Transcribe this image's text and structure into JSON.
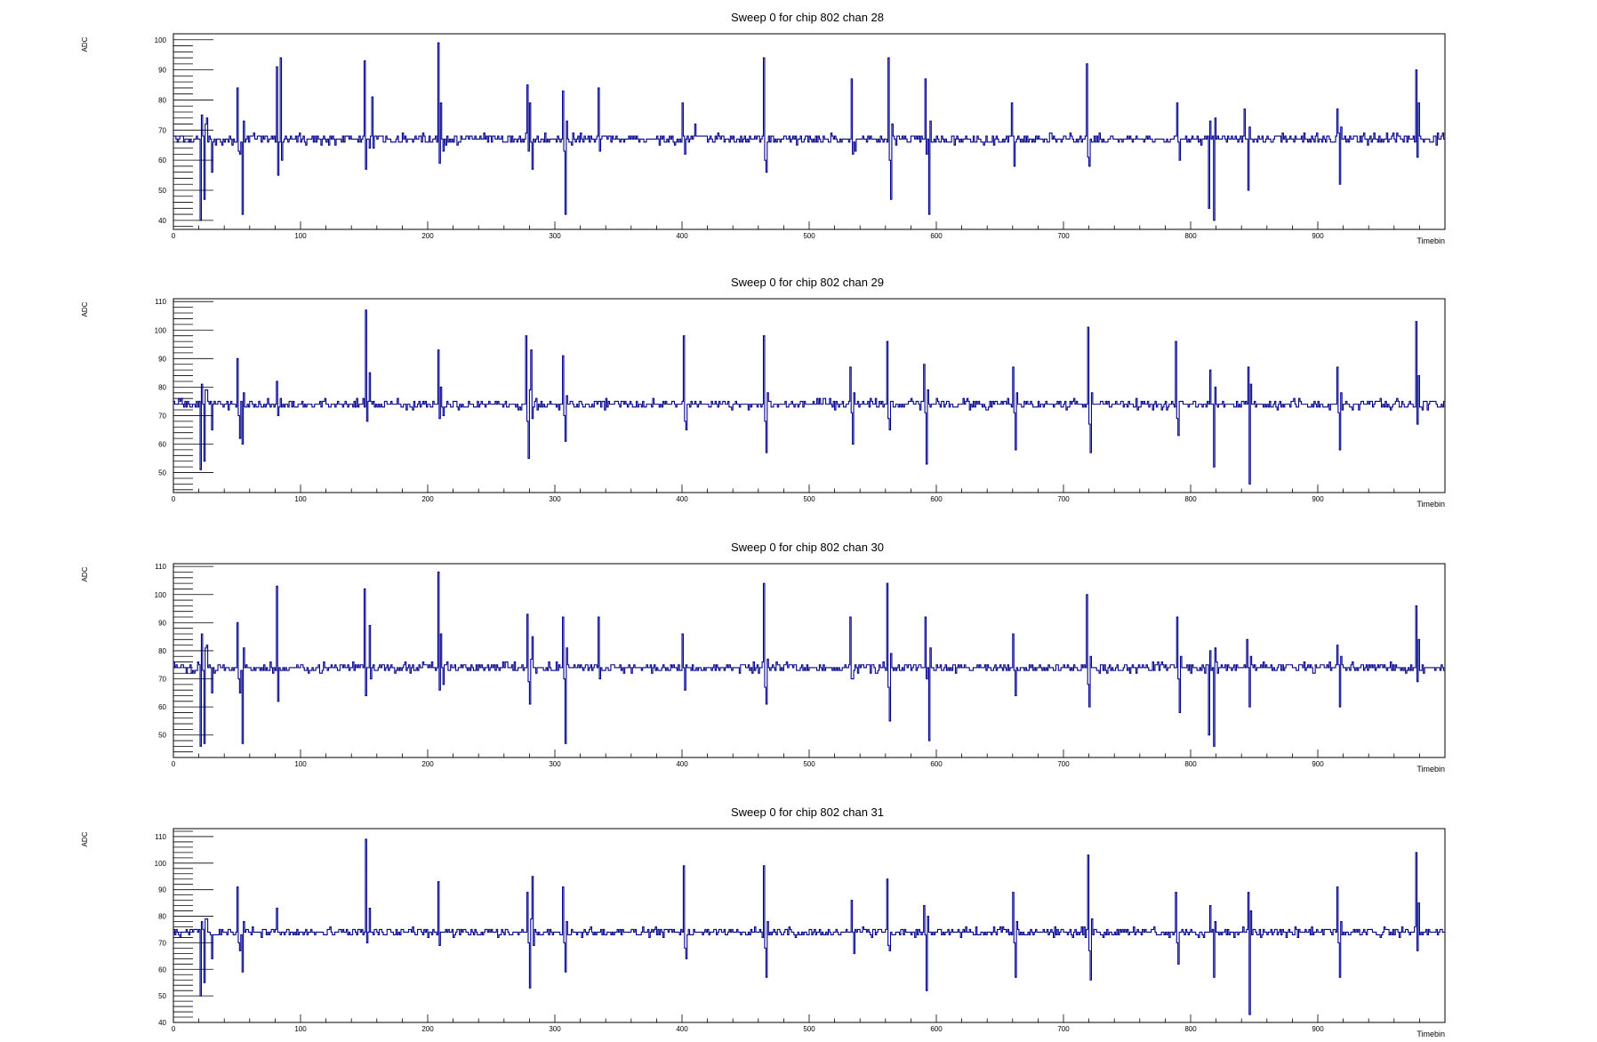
{
  "colors": {
    "series": "#00008b",
    "axis": "#000000",
    "background": "#ffffff"
  },
  "chart_data": [
    {
      "type": "line",
      "title": "Sweep 0 for chip 802 chan 28",
      "xlabel": "Timebin",
      "ylabel": "ADC",
      "xlim": [
        0,
        1000
      ],
      "ylim": [
        37,
        102
      ],
      "x_ticks": [
        "0",
        "100",
        "200",
        "300",
        "400",
        "500",
        "600",
        "700",
        "800",
        "900"
      ],
      "y_ticks": [
        "40",
        "50",
        "60",
        "70",
        "80",
        "90",
        "100"
      ],
      "baseline": 67,
      "series": [
        {
          "spikes": [
            [
              21,
              40
            ],
            [
              22,
              75
            ],
            [
              24,
              47
            ],
            [
              26,
              74
            ],
            [
              30,
              56
            ],
            [
              50,
              84
            ],
            [
              52,
              62
            ],
            [
              54,
              42
            ],
            [
              81,
              91
            ],
            [
              82,
              55
            ],
            [
              84,
              94
            ],
            [
              150,
              93
            ],
            [
              151,
              57
            ],
            [
              154,
              64
            ],
            [
              156,
              81
            ],
            [
              208,
              99
            ],
            [
              210,
              79
            ],
            [
              212,
              63
            ],
            [
              278,
              85
            ],
            [
              280,
              79
            ],
            [
              282,
              57
            ],
            [
              306,
              83
            ],
            [
              308,
              42
            ],
            [
              334,
              84
            ],
            [
              400,
              79
            ],
            [
              402,
              62
            ],
            [
              410,
              72
            ],
            [
              464,
              94
            ],
            [
              466,
              56
            ],
            [
              533,
              87
            ],
            [
              536,
              63
            ],
            [
              562,
              94
            ],
            [
              564,
              47
            ],
            [
              591,
              87
            ],
            [
              594,
              42
            ],
            [
              659,
              79
            ],
            [
              661,
              58
            ],
            [
              718,
              92
            ],
            [
              720,
              58
            ],
            [
              789,
              79
            ],
            [
              791,
              60
            ],
            [
              814,
              44
            ],
            [
              818,
              40
            ],
            [
              842,
              77
            ],
            [
              845,
              50
            ],
            [
              915,
              77
            ],
            [
              917,
              52
            ],
            [
              977,
              90
            ],
            [
              979,
              79
            ]
          ]
        }
      ]
    },
    {
      "type": "line",
      "title": "Sweep 0 for chip 802 chan 29",
      "xlabel": "Timebin",
      "ylabel": "ADC",
      "xlim": [
        0,
        1000
      ],
      "ylim": [
        43,
        111
      ],
      "x_ticks": [
        "0",
        "100",
        "200",
        "300",
        "400",
        "500",
        "600",
        "700",
        "800",
        "900"
      ],
      "y_ticks": [
        "50",
        "60",
        "70",
        "80",
        "90",
        "100",
        "110"
      ],
      "baseline": 74,
      "series": [
        {
          "spikes": [
            [
              21,
              51
            ],
            [
              22,
              81
            ],
            [
              24,
              54
            ],
            [
              26,
              79
            ],
            [
              30,
              65
            ],
            [
              50,
              90
            ],
            [
              52,
              62
            ],
            [
              54,
              60
            ],
            [
              81,
              82
            ],
            [
              82,
              70
            ],
            [
              151,
              107
            ],
            [
              152,
              68
            ],
            [
              154,
              85
            ],
            [
              208,
              93
            ],
            [
              210,
              80
            ],
            [
              212,
              70
            ],
            [
              277,
              98
            ],
            [
              279,
              55
            ],
            [
              281,
              93
            ],
            [
              306,
              91
            ],
            [
              308,
              61
            ],
            [
              401,
              98
            ],
            [
              403,
              65
            ],
            [
              464,
              98
            ],
            [
              466,
              57
            ],
            [
              532,
              87
            ],
            [
              534,
              60
            ],
            [
              561,
              96
            ],
            [
              563,
              65
            ],
            [
              590,
              88
            ],
            [
              592,
              53
            ],
            [
              660,
              87
            ],
            [
              662,
              58
            ],
            [
              719,
              101
            ],
            [
              721,
              57
            ],
            [
              788,
              96
            ],
            [
              790,
              63
            ],
            [
              815,
              86
            ],
            [
              818,
              52
            ],
            [
              845,
              87
            ],
            [
              846,
              46
            ],
            [
              915,
              87
            ],
            [
              917,
              58
            ],
            [
              977,
              103
            ],
            [
              979,
              84
            ]
          ]
        }
      ]
    },
    {
      "type": "line",
      "title": "Sweep 0 for chip 802 chan 30",
      "xlabel": "Timebin",
      "ylabel": "ADC",
      "xlim": [
        0,
        1000
      ],
      "ylim": [
        42,
        111
      ],
      "x_ticks": [
        "0",
        "100",
        "200",
        "300",
        "400",
        "500",
        "600",
        "700",
        "800",
        "900"
      ],
      "y_ticks": [
        "50",
        "60",
        "70",
        "80",
        "90",
        "100",
        "110"
      ],
      "baseline": 74,
      "series": [
        {
          "spikes": [
            [
              21,
              46
            ],
            [
              22,
              86
            ],
            [
              24,
              47
            ],
            [
              26,
              82
            ],
            [
              30,
              65
            ],
            [
              50,
              90
            ],
            [
              52,
              65
            ],
            [
              54,
              47
            ],
            [
              81,
              103
            ],
            [
              82,
              62
            ],
            [
              150,
              102
            ],
            [
              151,
              64
            ],
            [
              154,
              89
            ],
            [
              208,
              108
            ],
            [
              210,
              86
            ],
            [
              212,
              68
            ],
            [
              278,
              93
            ],
            [
              280,
              61
            ],
            [
              282,
              85
            ],
            [
              306,
              92
            ],
            [
              308,
              47
            ],
            [
              334,
              92
            ],
            [
              400,
              86
            ],
            [
              402,
              66
            ],
            [
              464,
              104
            ],
            [
              466,
              61
            ],
            [
              532,
              92
            ],
            [
              534,
              70
            ],
            [
              561,
              104
            ],
            [
              563,
              55
            ],
            [
              591,
              92
            ],
            [
              594,
              48
            ],
            [
              660,
              86
            ],
            [
              662,
              64
            ],
            [
              718,
              100
            ],
            [
              720,
              60
            ],
            [
              789,
              92
            ],
            [
              791,
              58
            ],
            [
              814,
              50
            ],
            [
              818,
              46
            ],
            [
              844,
              84
            ],
            [
              846,
              60
            ],
            [
              915,
              82
            ],
            [
              917,
              60
            ],
            [
              977,
              96
            ],
            [
              979,
              84
            ]
          ]
        }
      ]
    },
    {
      "type": "line",
      "title": "Sweep 0 for chip 802 chan 31",
      "xlabel": "Timebin",
      "ylabel": "ADC",
      "xlim": [
        0,
        1000
      ],
      "ylim": [
        40,
        113
      ],
      "x_ticks": [
        "0",
        "100",
        "200",
        "300",
        "400",
        "500",
        "600",
        "700",
        "800",
        "900"
      ],
      "y_ticks": [
        "40",
        "50",
        "60",
        "70",
        "80",
        "90",
        "100",
        "110"
      ],
      "baseline": 74,
      "series": [
        {
          "spikes": [
            [
              21,
              50
            ],
            [
              22,
              78
            ],
            [
              24,
              55
            ],
            [
              26,
              79
            ],
            [
              30,
              64
            ],
            [
              50,
              91
            ],
            [
              52,
              67
            ],
            [
              54,
              59
            ],
            [
              81,
              83
            ],
            [
              151,
              109
            ],
            [
              152,
              70
            ],
            [
              154,
              83
            ],
            [
              208,
              93
            ],
            [
              210,
              74
            ],
            [
              278,
              89
            ],
            [
              280,
              53
            ],
            [
              282,
              95
            ],
            [
              306,
              91
            ],
            [
              308,
              59
            ],
            [
              401,
              99
            ],
            [
              403,
              64
            ],
            [
              464,
              99
            ],
            [
              466,
              57
            ],
            [
              533,
              86
            ],
            [
              535,
              66
            ],
            [
              561,
              94
            ],
            [
              563,
              67
            ],
            [
              590,
              84
            ],
            [
              592,
              52
            ],
            [
              660,
              89
            ],
            [
              662,
              57
            ],
            [
              719,
              103
            ],
            [
              721,
              56
            ],
            [
              788,
              89
            ],
            [
              790,
              62
            ],
            [
              815,
              84
            ],
            [
              818,
              57
            ],
            [
              845,
              89
            ],
            [
              846,
              43
            ],
            [
              915,
              91
            ],
            [
              917,
              57
            ],
            [
              977,
              104
            ],
            [
              979,
              85
            ]
          ]
        }
      ]
    }
  ]
}
